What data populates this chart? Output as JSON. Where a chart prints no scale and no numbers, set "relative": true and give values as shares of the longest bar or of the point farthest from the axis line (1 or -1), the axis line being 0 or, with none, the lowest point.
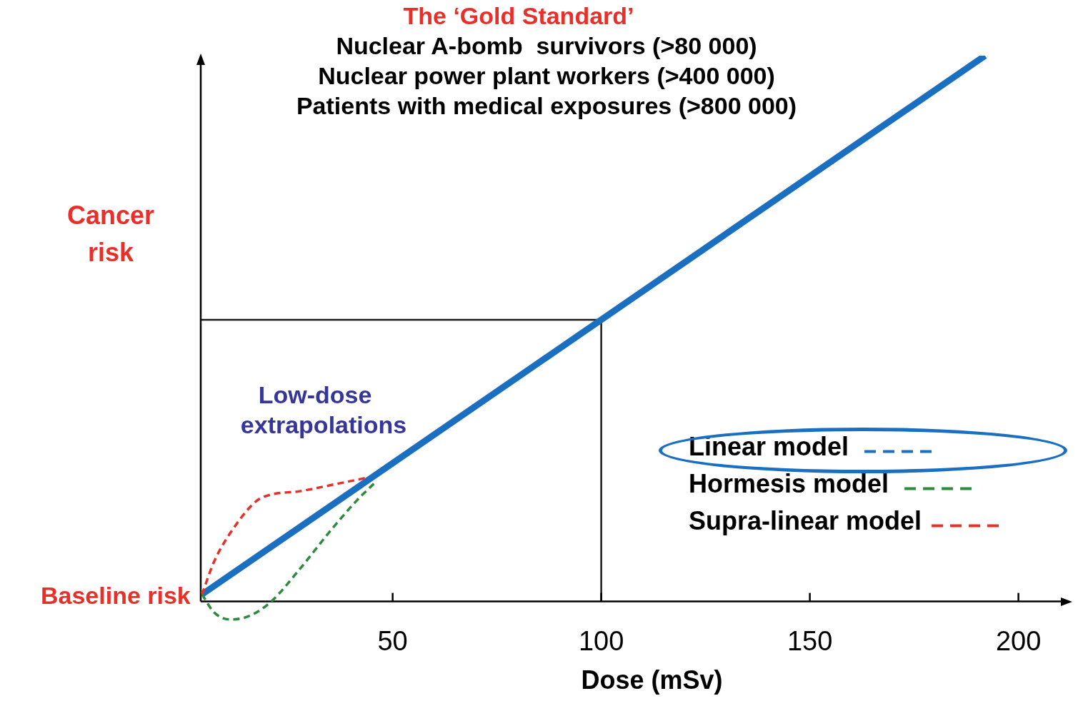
{
  "chart_data": {
    "type": "line",
    "title": "The ‘Gold Standard’",
    "subtitle": "Nuclear A-bomb  survivors (>80 000)\nNuclear power plant workers (>400 000)\nPatients with medical exposures (>800 000)",
    "xlabel": "Dose (mSv)",
    "ylabel": "Cancer risk",
    "relative": true,
    "xlim": [
      4,
      210
    ],
    "xticks": [
      50,
      100,
      150,
      200
    ],
    "marker": "none",
    "grid": false,
    "legend": "bottom right",
    "annotations": [
      {
        "text": "Baseline risk",
        "x": 4.3,
        "y": 0.013
      },
      "Low-dose extrapolations"
    ],
    "ref_lines": [
      {
        "axis": "y",
        "value": 0.516,
        "color": "#1a1a1a"
      },
      {
        "axis": "x",
        "value": 100,
        "color": "#1a1a1a"
      }
    ],
    "series": [
      {
        "name": "Linear model",
        "color": "#1a6fc0",
        "line_style": "solid",
        "x": [
          4.3,
          192
        ],
        "values": [
          0.013,
          1
        ]
      },
      {
        "name": "Hormesis model",
        "color": "#2e8b3e",
        "line_style": "dashed",
        "x": [
          4.3,
          7.2,
          11,
          15.8,
          20.9,
          27.7,
          34.6,
          41.4,
          46.2
        ],
        "values": [
          0.013,
          -0.02,
          -0.033,
          -0.026,
          0,
          0.059,
          0.125,
          0.185,
          0.221
        ]
      },
      {
        "name": "Supra-linear model",
        "color": "#e8302a",
        "line_style": "dashed",
        "x": [
          4.3,
          7.2,
          12.3,
          17.5,
          20.9,
          27.7,
          36.3,
          44
        ],
        "values": [
          0.013,
          0.073,
          0.139,
          0.185,
          0.196,
          0.202,
          0.215,
          0.227
        ]
      }
    ]
  }
}
